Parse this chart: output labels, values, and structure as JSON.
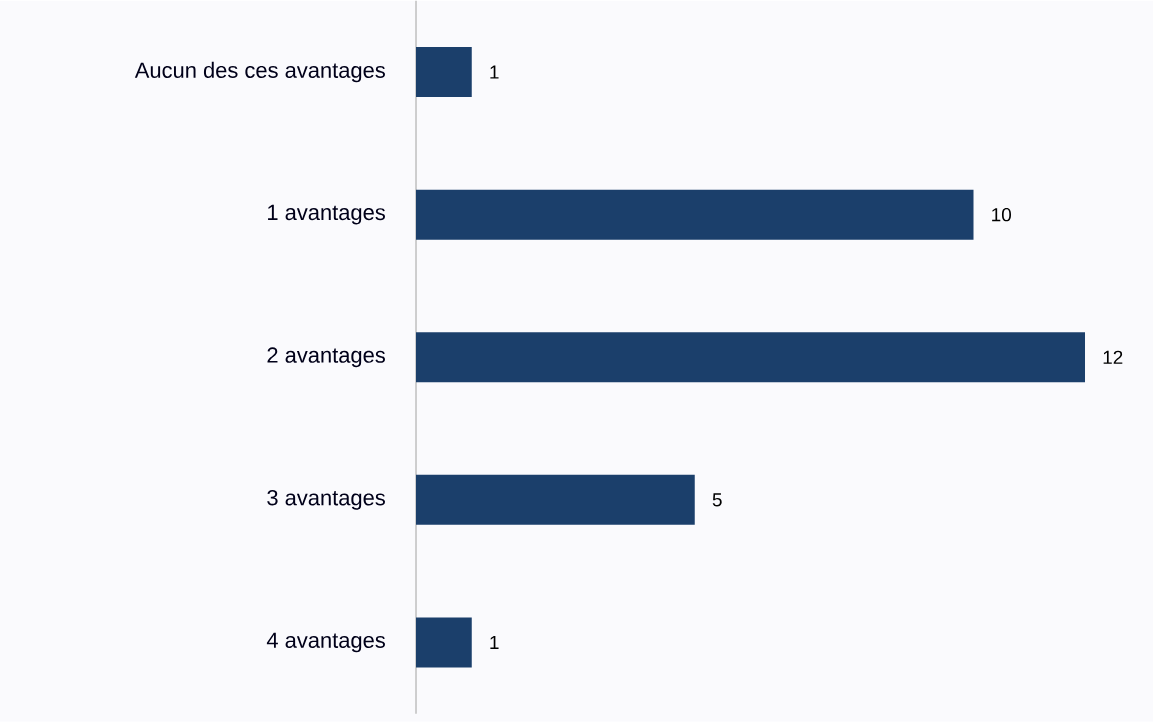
{
  "chart_data": {
    "type": "bar",
    "orientation": "horizontal",
    "categories": [
      "Aucun des ces avantages",
      "1 avantages",
      "2 avantages",
      "3 avantages",
      "4 avantages"
    ],
    "values": [
      1,
      10,
      12,
      5,
      1
    ],
    "color": "#1b3f6b",
    "data_labels": true,
    "tick_labels": "y"
  }
}
